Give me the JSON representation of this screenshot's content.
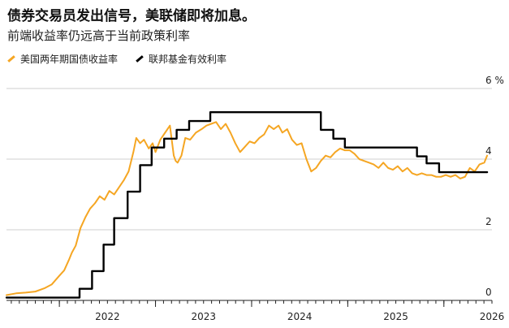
{
  "header": {
    "title": "债券交易员发出信号，美联储即将加息。",
    "subtitle": "前端收益率仍远高于当前政策利率"
  },
  "chart_data": {
    "type": "line",
    "title": "债券交易员发出信号，美联储即将加息。",
    "subtitle": "前端收益率仍远高于当前政策利率",
    "xlabel": "",
    "ylabel": "",
    "x_range": [
      2021.45,
      2026.5
    ],
    "ylim": [
      0,
      6
    ],
    "y_ticks": [
      0,
      2,
      4,
      6
    ],
    "y_tick_labels": [
      "0",
      "2",
      "4",
      "6 %"
    ],
    "x_ticks": [
      2022,
      2023,
      2024,
      2025,
      2026
    ],
    "x_tick_labels": [
      "2022",
      "2023",
      "2024",
      "2025",
      "2026"
    ],
    "grid": true,
    "legend_position": "top-left",
    "colors": {
      "yield": "#f5a623",
      "fed": "#000000",
      "grid": "#cfcfcf",
      "axis": "#222222"
    },
    "series": [
      {
        "name": "美国两年期国债收益率",
        "color": "#f5a623",
        "style": "line",
        "x": [
          2021.45,
          2021.55,
          2021.65,
          2021.75,
          2021.85,
          2021.92,
          2022.0,
          2022.05,
          2022.1,
          2022.13,
          2022.17,
          2022.22,
          2022.27,
          2022.32,
          2022.37,
          2022.42,
          2022.47,
          2022.52,
          2022.57,
          2022.62,
          2022.67,
          2022.72,
          2022.77,
          2022.8,
          2022.84,
          2022.88,
          2022.93,
          2022.97,
          2023.0,
          2023.05,
          2023.1,
          2023.15,
          2023.19,
          2023.21,
          2023.23,
          2023.27,
          2023.31,
          2023.36,
          2023.42,
          2023.48,
          2023.53,
          2023.58,
          2023.63,
          2023.68,
          2023.73,
          2023.78,
          2023.83,
          2023.88,
          2023.93,
          2023.98,
          2024.03,
          2024.08,
          2024.13,
          2024.18,
          2024.23,
          2024.28,
          2024.32,
          2024.37,
          2024.42,
          2024.47,
          2024.52,
          2024.57,
          2024.62,
          2024.67,
          2024.72,
          2024.77,
          2024.82,
          2024.87,
          2024.92,
          2024.97,
          2025.02,
          2025.07,
          2025.12,
          2025.17,
          2025.22,
          2025.27,
          2025.32,
          2025.37,
          2025.42,
          2025.47,
          2025.52,
          2025.57,
          2025.62,
          2025.67,
          2025.72,
          2025.77,
          2025.82,
          2025.87,
          2025.92,
          2025.97,
          2026.02,
          2026.07,
          2026.12,
          2026.17,
          2026.22,
          2026.27,
          2026.32,
          2026.37,
          2026.42,
          2026.45
        ],
        "values": [
          0.15,
          0.2,
          0.22,
          0.25,
          0.35,
          0.45,
          0.7,
          0.85,
          1.15,
          1.35,
          1.55,
          2.05,
          2.35,
          2.6,
          2.75,
          2.95,
          2.85,
          3.1,
          3.0,
          3.2,
          3.4,
          3.65,
          4.2,
          4.6,
          4.45,
          4.55,
          4.3,
          4.45,
          4.2,
          4.55,
          4.75,
          4.95,
          4.1,
          3.95,
          3.9,
          4.1,
          4.6,
          4.55,
          4.75,
          4.85,
          4.95,
          5.0,
          5.05,
          4.85,
          5.0,
          4.75,
          4.45,
          4.2,
          4.35,
          4.5,
          4.45,
          4.6,
          4.7,
          4.95,
          4.85,
          4.95,
          4.75,
          4.85,
          4.55,
          4.4,
          4.45,
          4.0,
          3.65,
          3.75,
          3.95,
          4.1,
          4.05,
          4.2,
          4.3,
          4.25,
          4.25,
          4.15,
          4.0,
          3.95,
          3.9,
          3.85,
          3.75,
          3.9,
          3.75,
          3.7,
          3.8,
          3.65,
          3.75,
          3.6,
          3.55,
          3.6,
          3.55,
          3.55,
          3.5,
          3.5,
          3.55,
          3.5,
          3.55,
          3.45,
          3.5,
          3.75,
          3.65,
          3.85,
          3.9,
          4.1
        ]
      },
      {
        "name": "联邦基金有效利率",
        "color": "#000000",
        "style": "step",
        "x": [
          2021.45,
          2022.21,
          2022.34,
          2022.46,
          2022.57,
          2022.71,
          2022.84,
          2022.96,
          2023.09,
          2023.22,
          2023.35,
          2023.57,
          2024.72,
          2024.85,
          2024.97,
          2025.72,
          2025.82,
          2025.95,
          2026.45
        ],
        "values": [
          0.08,
          0.33,
          0.83,
          1.58,
          2.33,
          3.08,
          3.83,
          4.33,
          4.58,
          4.83,
          5.08,
          5.33,
          4.83,
          4.58,
          4.33,
          4.08,
          3.88,
          3.63,
          3.63
        ]
      }
    ]
  }
}
